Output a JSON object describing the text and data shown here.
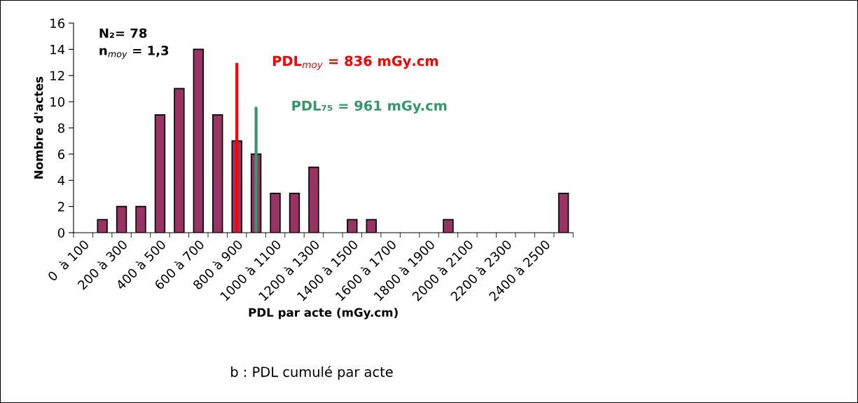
{
  "chart_data": {
    "type": "bar",
    "categories": [
      "0  à 100",
      null,
      "200 à 300",
      null,
      "400 à 500",
      null,
      "600 à 700",
      null,
      "800 à 900",
      null,
      "1000 à 1100",
      null,
      "1200 à 1300",
      null,
      "1400 à 1500",
      null,
      "1600 à 1700",
      null,
      "1800 à 1900",
      null,
      "2000 à 2100",
      null,
      "2200 à 2300",
      null,
      "2400 à 2500",
      null
    ],
    "values": [
      0,
      1,
      2,
      2,
      9,
      11,
      14,
      9,
      7,
      6,
      3,
      3,
      5,
      0,
      1,
      1,
      0,
      0,
      0,
      1,
      0,
      0,
      0,
      0,
      0,
      3
    ],
    "color": "#993366",
    "xlabel": "PDL par acte (mGy.cm)",
    "ylabel": "Nombre d'actes",
    "ylim": [
      0,
      16
    ],
    "yticks": [
      0,
      2,
      4,
      6,
      8,
      10,
      12,
      14,
      16
    ],
    "ref_lines": [
      {
        "axis": "x",
        "value": "800 à 900",
        "color": "#ff0000",
        "label": "PDL$_{moy}$ = 836 mGy.cm"
      },
      {
        "axis": "x",
        "color": "#339966",
        "label": "PDL₇₅ = 961 mGy.cm"
      }
    ],
    "annotations": [
      "N₂= 78",
      "n$_{moy}$ = 1,3",
      "b : PDL cumulé par acte"
    ],
    "grid": false
  }
}
